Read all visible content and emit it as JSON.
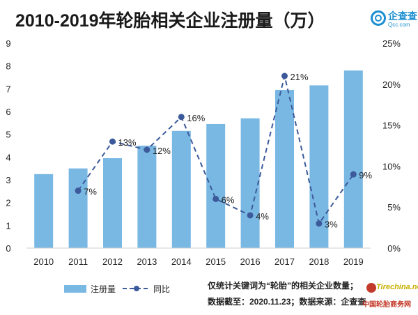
{
  "title": "2010-2019年轮胎相关企业注册量（万）",
  "logo": {
    "name": "企查查",
    "domain": "Qcc.com",
    "icon": "magnifier-circle-icon",
    "color": "#1a8fd0"
  },
  "chart_data": {
    "type": "bar",
    "categories": [
      "2010",
      "2011",
      "2012",
      "2013",
      "2014",
      "2015",
      "2016",
      "2017",
      "2018",
      "2019"
    ],
    "series": [
      {
        "name": "注册量",
        "type": "bar",
        "axis": "left",
        "values": [
          3.25,
          3.5,
          3.95,
          4.5,
          5.15,
          5.45,
          5.7,
          6.95,
          7.15,
          7.8
        ],
        "color": "#7ab8e4"
      },
      {
        "name": "同比",
        "type": "line",
        "axis": "right",
        "style": "dashed-with-markers",
        "values": [
          null,
          7,
          13,
          12,
          16,
          6,
          4,
          21,
          3,
          9
        ],
        "labels": [
          "",
          "7%",
          "13%",
          "12%",
          "16%",
          "6%",
          "4%",
          "21%",
          "3%",
          "9%"
        ],
        "color": "#3c5a9a"
      }
    ],
    "y_left": {
      "min": 0,
      "max": 9,
      "ticks": [
        "0",
        "1",
        "2",
        "3",
        "4",
        "5",
        "6",
        "7",
        "8",
        "9"
      ]
    },
    "y_right": {
      "min": 0,
      "max": 25,
      "ticks": [
        "0%",
        "5%",
        "10%",
        "15%",
        "20%",
        "25%"
      ]
    },
    "grid": false,
    "legend": {
      "position": "bottom-left",
      "bar_label": "注册量",
      "line_label": "同比"
    }
  },
  "notes": {
    "line1": "仅统计关键词为“轮胎”的相关企业数量；",
    "line2": "数据截至：2020.11.23；数据来源：企查查"
  },
  "watermark": {
    "name": "Tirechina.net",
    "sub": "中国轮胎商务网"
  }
}
